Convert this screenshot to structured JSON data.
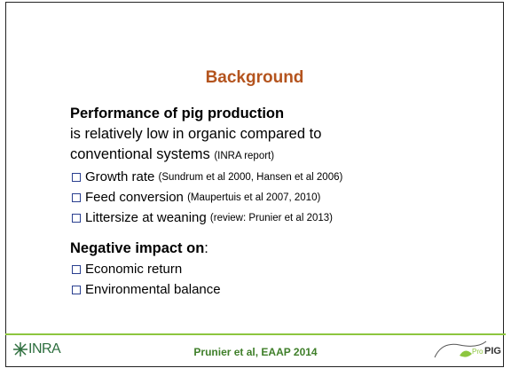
{
  "title": "Background",
  "section1": {
    "heading": "Performance of pig production",
    "lines": [
      "is relatively low in organic compared to",
      "conventional systems"
    ],
    "line_ref": "(INRA report)",
    "bullets": [
      {
        "text": "Growth rate",
        "ref": "(Sundrum et al 2000, Hansen et al 2006)"
      },
      {
        "text": "Feed conversion",
        "ref": "(Maupertuis et al 2007, 2010)"
      },
      {
        "text": "Littersize at weaning",
        "ref": "(review: Prunier et al 2013)"
      }
    ]
  },
  "section2": {
    "heading": "Negative impact on",
    "heading_suffix": ":",
    "bullets": [
      "Economic return",
      "Environmental balance"
    ]
  },
  "footer": {
    "text": "Prunier et al, EAAP 2014",
    "logo_left": "INRA",
    "logo_right_a": "Pro",
    "logo_right_b": "PIG"
  }
}
